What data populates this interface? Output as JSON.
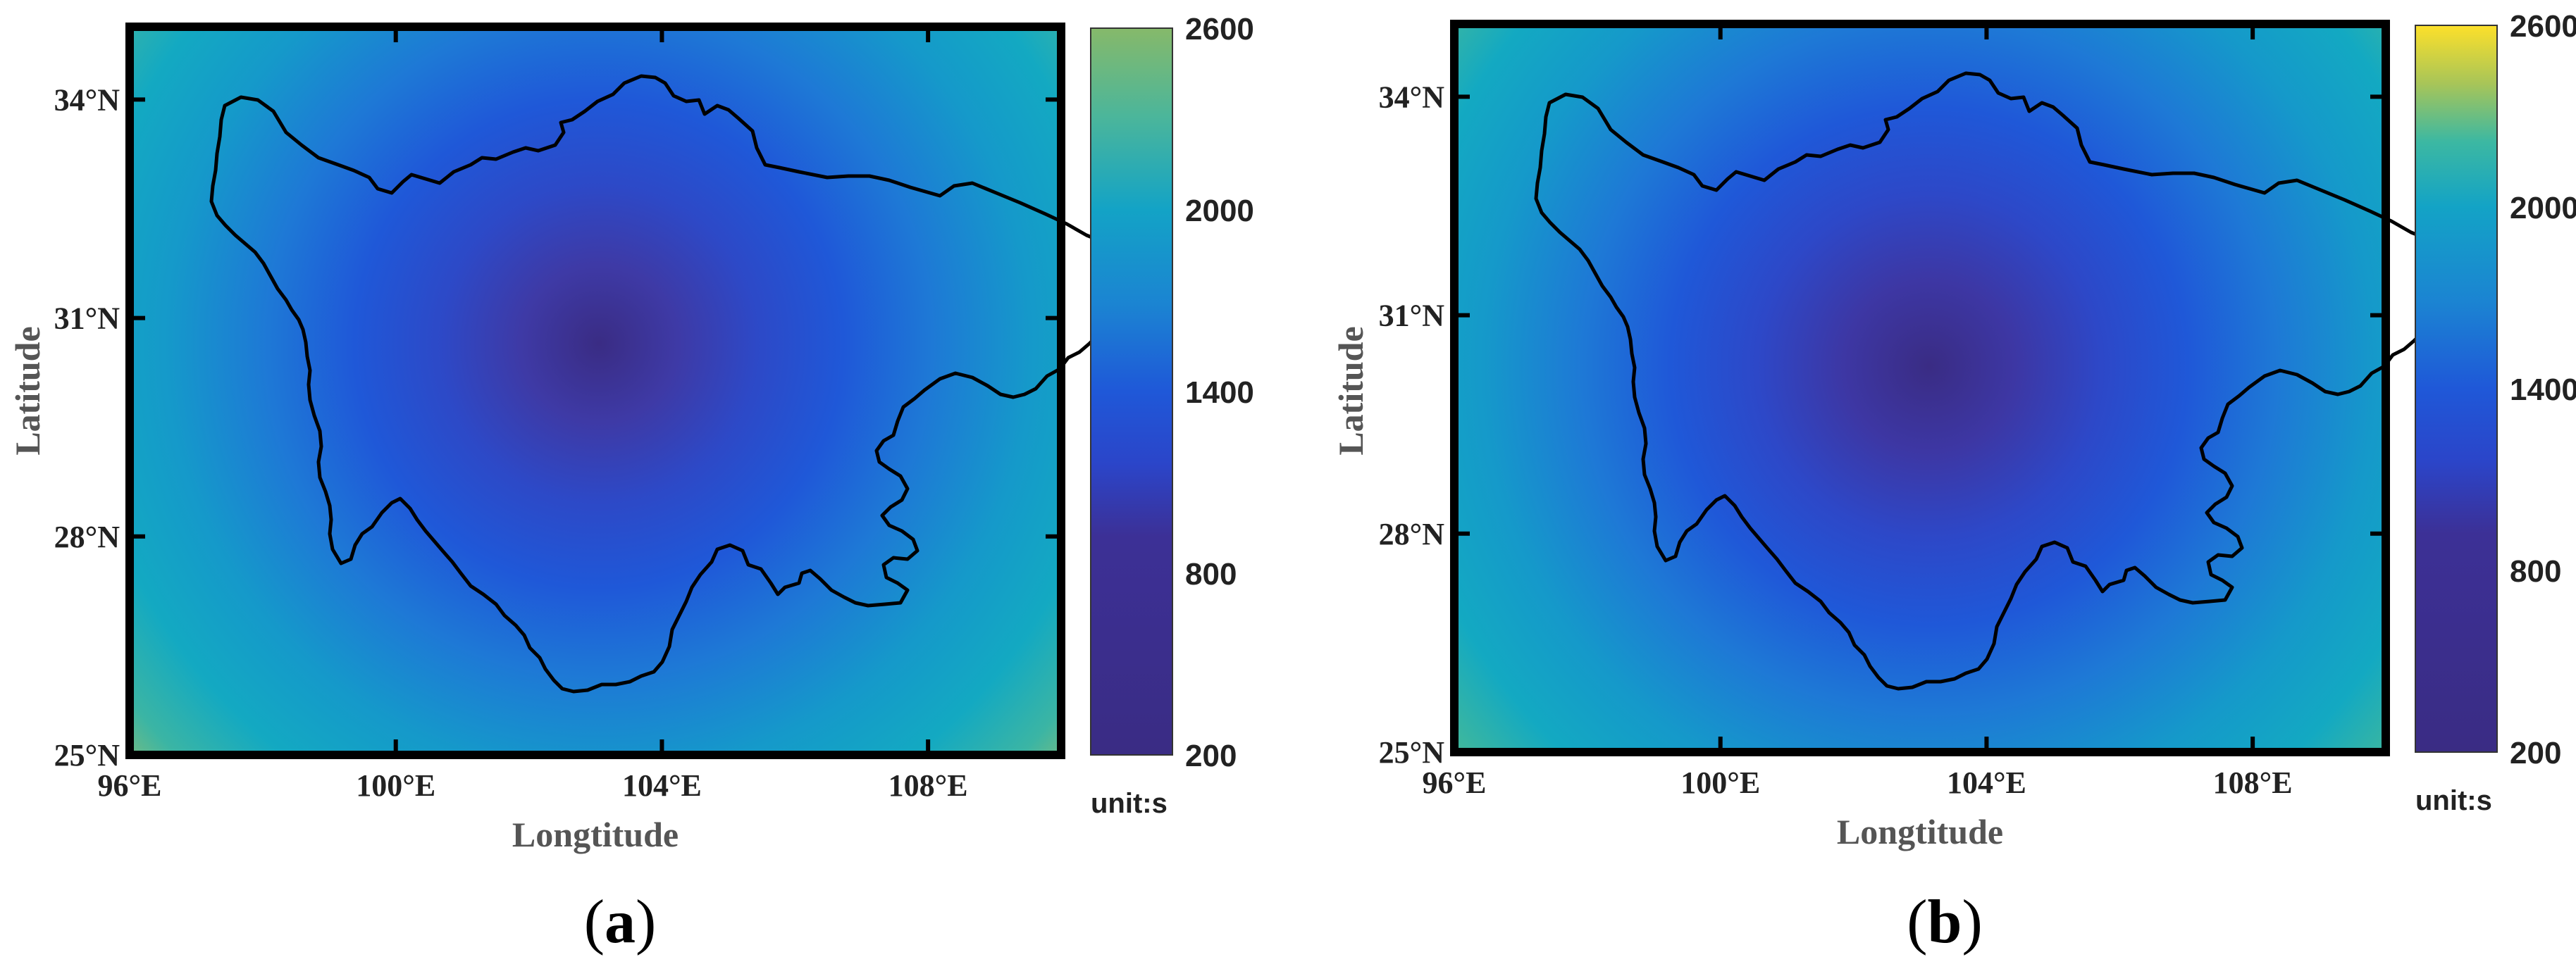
{
  "colors": {
    "low": "#3a2c84",
    "mid": "#1f56d9",
    "teal": "#13a3c6",
    "green_a": "#86b96a",
    "yellow_b": "#fde02a",
    "yellow_corner": "#fbd232",
    "boundary": "#000000"
  },
  "chart_data": [
    {
      "type": "heatmap",
      "panel_label": "a",
      "xlabel": "Longtitude",
      "ylabel": "Latitude",
      "xlim": [
        96,
        110
      ],
      "ylim": [
        25,
        35
      ],
      "x_ticks": [
        96,
        100,
        104,
        108
      ],
      "y_ticks": [
        25,
        28,
        31,
        34
      ],
      "x_tick_labels": [
        "96°E",
        "100°E",
        "104°E",
        "108°E"
      ],
      "y_tick_labels": [
        "25°N",
        "28°N",
        "31°N",
        "34°N"
      ],
      "colorbar": {
        "range": [
          200,
          2600
        ],
        "ticks": [
          200,
          800,
          1400,
          2000,
          2600
        ],
        "tick_labels": [
          "200",
          "800",
          "1400",
          "2000",
          "2600"
        ],
        "unit": "unit:s",
        "top_color": "green"
      },
      "field": {
        "center_lon": 103.0,
        "center_lat": 30.5,
        "min_value": 650,
        "max_value": 2600,
        "shape": "radial"
      }
    },
    {
      "type": "heatmap",
      "panel_label": "b",
      "xlabel": "Longtitude",
      "ylabel": "Latitude",
      "xlim": [
        96,
        110
      ],
      "ylim": [
        25,
        35
      ],
      "x_ticks": [
        96,
        100,
        104,
        108
      ],
      "y_ticks": [
        25,
        28,
        31,
        34
      ],
      "x_tick_labels": [
        "96°E",
        "100°E",
        "104°E",
        "108°E"
      ],
      "y_tick_labels": [
        "25°N",
        "28°N",
        "31°N",
        "34°N"
      ],
      "colorbar": {
        "range": [
          200,
          2600
        ],
        "ticks": [
          200,
          800,
          1400,
          2000,
          2600
        ],
        "tick_labels": [
          "200",
          "800",
          "1400",
          "2000",
          "2600"
        ],
        "unit": "unit:s",
        "top_color": "yellow"
      },
      "field": {
        "center_lon": 103.0,
        "center_lat": 30.3,
        "min_value": 650,
        "max_value": 2600,
        "shape": "radial"
      }
    }
  ]
}
